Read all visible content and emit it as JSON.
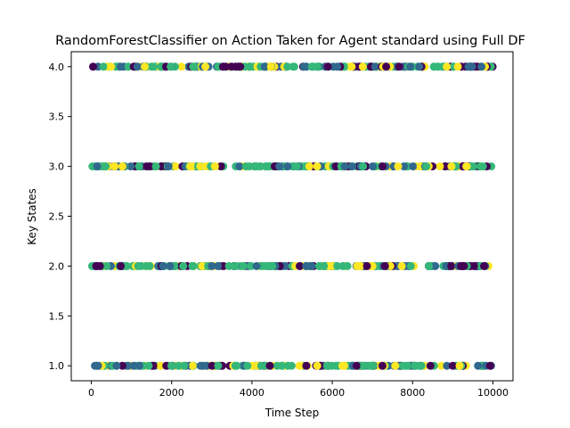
{
  "chart_data": {
    "type": "scatter",
    "title": "RandomForestClassifier on Action Taken for Agent standard using Full DF",
    "xlabel": "Time Step",
    "ylabel": "Key States",
    "xlim": [
      -500,
      10500
    ],
    "ylim": [
      0.85,
      4.15
    ],
    "xticks": [
      0,
      2000,
      4000,
      6000,
      8000,
      10000
    ],
    "xtick_labels": [
      "0",
      "2000",
      "4000",
      "6000",
      "8000",
      "10000"
    ],
    "yticks": [
      1.0,
      1.5,
      2.0,
      2.5,
      3.0,
      3.5,
      4.0
    ],
    "ytick_labels": [
      "1.0",
      "1.5",
      "2.0",
      "2.5",
      "3.0",
      "3.5",
      "4.0"
    ],
    "grid": false,
    "legend": "none",
    "y_levels": [
      1.0,
      2.0,
      3.0,
      4.0
    ],
    "x_range_of_points": [
      0,
      10000
    ],
    "color_classes": [
      {
        "class": 0,
        "color": "#440154"
      },
      {
        "class": 1,
        "color": "#31688e"
      },
      {
        "class": 2,
        "color": "#35b779"
      },
      {
        "class": 3,
        "color": "#fde725"
      }
    ]
  }
}
